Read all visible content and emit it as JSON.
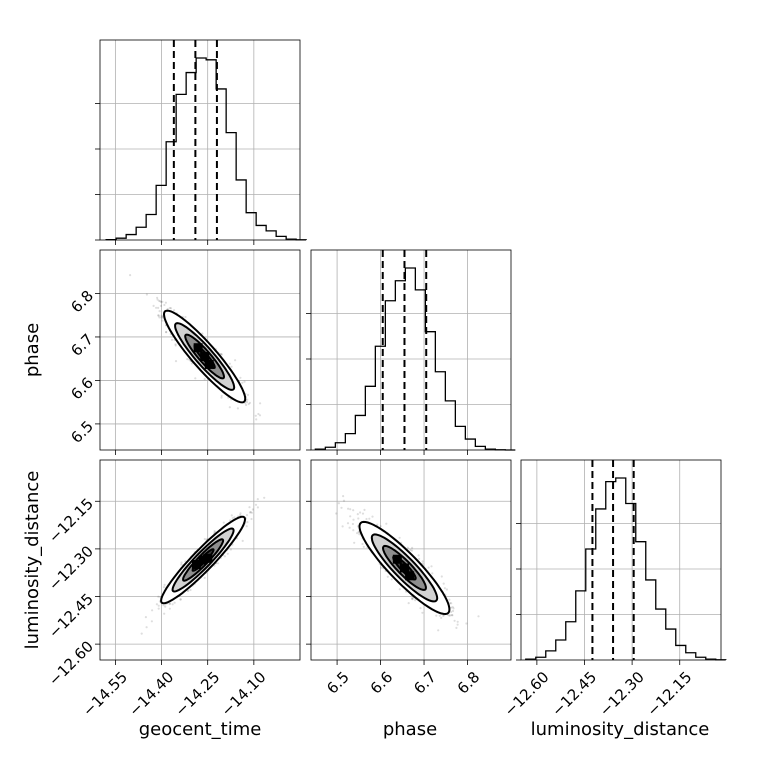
{
  "chart_data": {
    "type": "corner",
    "parameters": [
      "geocent_time",
      "phase",
      "luminosity_distance"
    ],
    "xlabels": [
      "geocent_time",
      "phase",
      "luminosity_distance"
    ],
    "ylabels": [
      "phase",
      "luminosity_distance"
    ],
    "ranges": {
      "geocent_time": [
        -14.6,
        -13.95
      ],
      "phase": [
        6.44,
        6.9
      ],
      "luminosity_distance": [
        -12.65,
        -12.02
      ]
    },
    "ticks": {
      "geocent_time": [
        -14.55,
        -14.4,
        -14.25,
        -14.1
      ],
      "phase": [
        6.5,
        6.6,
        6.7,
        6.8
      ],
      "luminosity_distance": [
        -12.6,
        -12.45,
        -12.3,
        -12.15
      ]
    },
    "tick_labels": {
      "geocent_time": [
        "−14.55",
        "−14.40",
        "−14.25",
        "−14.10"
      ],
      "phase": [
        "6.5",
        "6.6",
        "6.7",
        "6.8"
      ],
      "luminosity_distance": [
        "−12.60",
        "−12.45",
        "−12.30",
        "−12.15"
      ]
    },
    "histograms": [
      {
        "param": "geocent_time",
        "bin_start": -14.58,
        "bin_width": 0.0325,
        "counts": [
          0.2,
          1,
          3,
          7,
          14,
          30,
          54,
          80,
          92,
          100,
          99,
          83,
          59,
          33,
          15,
          8,
          5,
          2,
          0.5,
          0.1
        ],
        "quantiles": [
          -14.36,
          -14.29,
          -14.22
        ]
      },
      {
        "param": "phase",
        "bin_start": 6.45,
        "bin_width": 0.023,
        "counts": [
          0.5,
          1.5,
          4,
          9,
          19,
          35,
          57,
          82,
          93,
          100,
          88,
          65,
          43,
          27,
          13,
          6,
          2,
          0.5,
          0.1,
          0
        ],
        "quantiles": [
          6.605,
          6.655,
          6.705
        ]
      },
      {
        "param": "luminosity_distance",
        "bin_start": -12.635,
        "bin_width": 0.0315,
        "counts": [
          0.5,
          1.5,
          5,
          11,
          21,
          38,
          61,
          83,
          98,
          100,
          86,
          65,
          44,
          28,
          17,
          8,
          4,
          1.5,
          0.5,
          0.1
        ],
        "quantiles": [
          -12.425,
          -12.36,
          -12.295
        ]
      }
    ],
    "joint": [
      {
        "x": "geocent_time",
        "y": "phase",
        "center": [
          -14.26,
          6.655
        ],
        "sd": [
          0.06,
          0.048
        ],
        "corr": -0.92
      },
      {
        "x": "geocent_time",
        "y": "luminosity_distance",
        "center": [
          -14.265,
          -12.335
        ],
        "sd": [
          0.062,
          0.062
        ],
        "corr": 0.94
      },
      {
        "x": "phase",
        "y": "luminosity_distance",
        "center": [
          6.655,
          -12.36
        ],
        "sd": [
          0.047,
          0.066
        ],
        "corr": -0.9
      }
    ],
    "grid": true
  }
}
